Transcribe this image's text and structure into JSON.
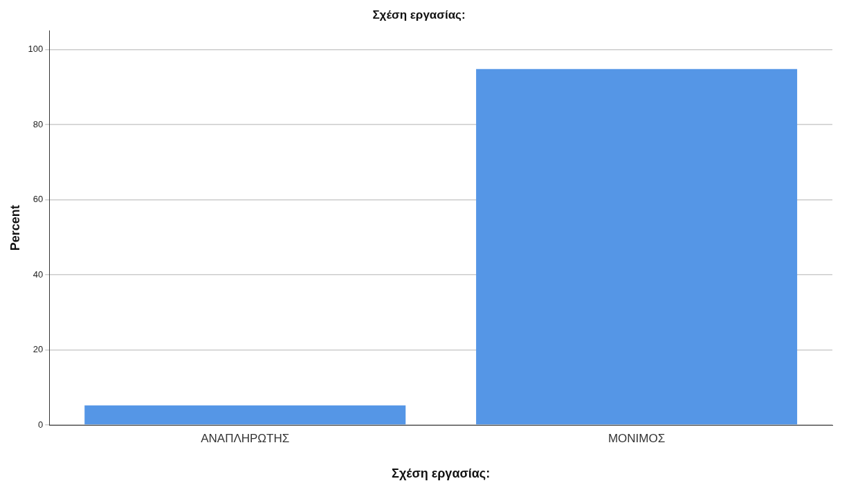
{
  "chart_data": {
    "type": "bar",
    "title": "Σχέση εργασίας:",
    "xlabel": "Σχέση εργασίας:",
    "ylabel": "Percent",
    "categories": [
      "ΑΝΑΠΛΗΡΩΤΗΣ",
      "ΜΟΝΙΜΟΣ"
    ],
    "values": [
      5.2,
      94.8
    ],
    "color": "#5596e6",
    "ylim": [
      0,
      105
    ],
    "yticks": [
      0,
      20,
      40,
      60,
      80,
      100
    ],
    "grid": "y"
  }
}
